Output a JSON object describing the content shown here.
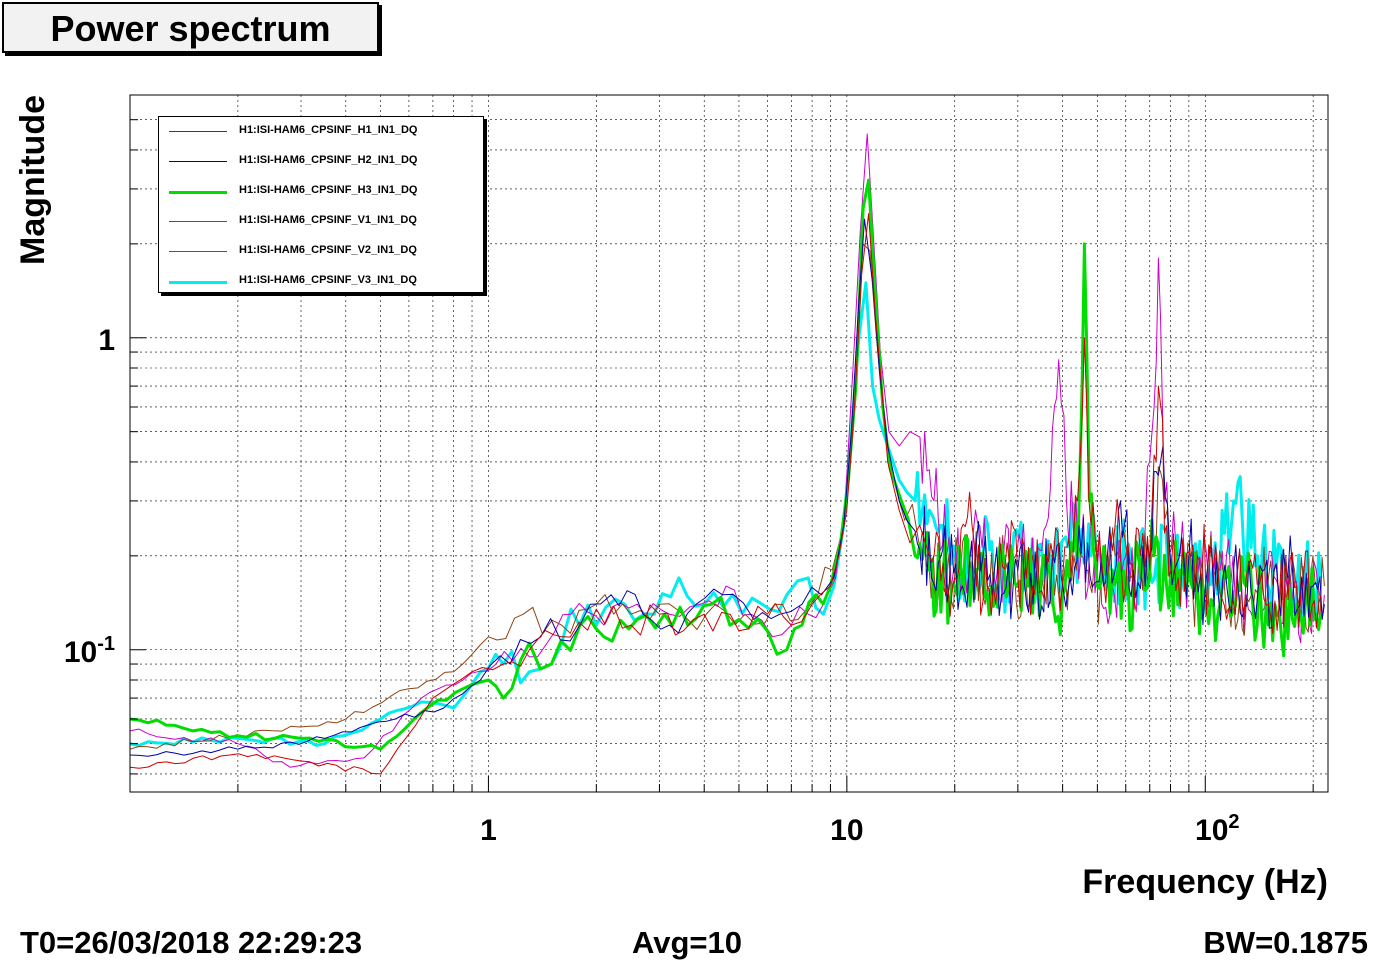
{
  "title": "Power spectrum",
  "footer": {
    "t0": "T0=26/03/2018 22:29:23",
    "avg": "Avg=10",
    "bw": "BW=0.1875"
  },
  "chart_data": {
    "type": "line",
    "xlabel": "Frequency (Hz)",
    "ylabel": "Magnitude",
    "xscale": "log",
    "yscale": "log",
    "xlim": [
      0.1,
      220
    ],
    "ylim": [
      0.035,
      6
    ],
    "x_tick_labels": [
      "1",
      "10",
      "10^2"
    ],
    "y_tick_labels": [
      "1",
      "10^-1"
    ],
    "grid": true,
    "legend_position": "top-left",
    "series": [
      {
        "name": "H1:ISI-HAM6_CPSINF_H1_IN1_DQ",
        "color": "#cc0000",
        "width": 1,
        "points": [
          [
            0.1,
            0.042
          ],
          [
            0.19,
            0.046
          ],
          [
            0.3,
            0.044
          ],
          [
            0.5,
            0.04
          ],
          [
            0.7,
            0.07
          ],
          [
            0.9,
            0.085
          ],
          [
            1.1,
            0.09
          ],
          [
            1.3,
            0.1
          ],
          [
            1.6,
            0.11
          ],
          [
            2,
            0.135
          ],
          [
            2.5,
            0.12
          ],
          [
            3,
            0.13
          ],
          [
            3.5,
            0.115
          ],
          [
            4,
            0.13
          ],
          [
            5,
            0.115
          ],
          [
            6,
            0.13
          ],
          [
            7,
            0.12
          ],
          [
            8,
            0.14
          ],
          [
            9,
            0.16
          ],
          [
            9.5,
            0.2
          ],
          [
            10,
            0.28
          ],
          [
            10.5,
            0.6
          ],
          [
            11,
            1.6
          ],
          [
            11.5,
            2.5
          ],
          [
            12,
            1.2
          ],
          [
            12.5,
            0.7
          ],
          [
            13,
            0.4
          ],
          [
            14,
            0.28
          ],
          [
            15,
            0.22
          ],
          [
            17,
            0.2
          ],
          [
            20,
            0.17
          ],
          [
            22,
            0.32
          ],
          [
            23,
            0.16
          ],
          [
            26,
            0.14
          ],
          [
            28,
            0.22
          ],
          [
            30,
            0.17
          ],
          [
            33,
            0.16
          ],
          [
            36,
            0.2
          ],
          [
            40,
            0.17
          ],
          [
            44,
            0.3
          ],
          [
            46,
            1.0
          ],
          [
            48,
            0.25
          ],
          [
            52,
            0.17
          ],
          [
            56,
            0.25
          ],
          [
            60,
            0.16
          ],
          [
            66,
            0.2
          ],
          [
            70,
            0.18
          ],
          [
            74,
            0.7
          ],
          [
            78,
            0.25
          ],
          [
            84,
            0.17
          ],
          [
            95,
            0.2
          ],
          [
            110,
            0.15
          ],
          [
            130,
            0.17
          ],
          [
            150,
            0.14
          ],
          [
            180,
            0.16
          ],
          [
            210,
            0.15
          ]
        ]
      },
      {
        "name": "H1:ISI-HAM6_CPSINF_H2_IN1_DQ",
        "color": "#0000aa",
        "width": 1,
        "points": [
          [
            0.1,
            0.046
          ],
          [
            0.2,
            0.048
          ],
          [
            0.35,
            0.052
          ],
          [
            0.55,
            0.06
          ],
          [
            0.75,
            0.065
          ],
          [
            0.95,
            0.08
          ],
          [
            1.15,
            0.09
          ],
          [
            1.4,
            0.11
          ],
          [
            1.8,
            0.12
          ],
          [
            2.2,
            0.15
          ],
          [
            2.7,
            0.13
          ],
          [
            3.2,
            0.12
          ],
          [
            3.8,
            0.14
          ],
          [
            4.5,
            0.15
          ],
          [
            5.5,
            0.125
          ],
          [
            6.5,
            0.13
          ],
          [
            7.5,
            0.14
          ],
          [
            8.5,
            0.15
          ],
          [
            9.2,
            0.17
          ],
          [
            9.8,
            0.25
          ],
          [
            10.3,
            0.5
          ],
          [
            10.8,
            1.3
          ],
          [
            11.2,
            2.4
          ],
          [
            11.8,
            1.5
          ],
          [
            12.3,
            0.8
          ],
          [
            13,
            0.45
          ],
          [
            14,
            0.3
          ],
          [
            15.5,
            0.24
          ],
          [
            18,
            0.19
          ],
          [
            21,
            0.16
          ],
          [
            24,
            0.2
          ],
          [
            27,
            0.15
          ],
          [
            30,
            0.18
          ],
          [
            34,
            0.16
          ],
          [
            38,
            0.19
          ],
          [
            42,
            0.17
          ],
          [
            47,
            0.22
          ],
          [
            52,
            0.16
          ],
          [
            58,
            0.3
          ],
          [
            63,
            0.18
          ],
          [
            68,
            0.16
          ],
          [
            75,
            0.4
          ],
          [
            82,
            0.18
          ],
          [
            90,
            0.2
          ],
          [
            100,
            0.16
          ],
          [
            120,
            0.18
          ],
          [
            140,
            0.15
          ],
          [
            170,
            0.17
          ],
          [
            200,
            0.16
          ],
          [
            215,
            0.14
          ]
        ]
      },
      {
        "name": "H1:ISI-HAM6_CPSINF_H3_IN1_DQ",
        "color": "#00dd00",
        "width": 3,
        "points": [
          [
            0.1,
            0.06
          ],
          [
            0.2,
            0.053
          ],
          [
            0.3,
            0.052
          ],
          [
            0.5,
            0.048
          ],
          [
            0.65,
            0.063
          ],
          [
            0.85,
            0.075
          ],
          [
            1.0,
            0.08
          ],
          [
            1.1,
            0.07
          ],
          [
            1.3,
            0.105
          ],
          [
            1.5,
            0.09
          ],
          [
            1.8,
            0.12
          ],
          [
            2.1,
            0.11
          ],
          [
            2.6,
            0.125
          ],
          [
            3.1,
            0.13
          ],
          [
            3.6,
            0.12
          ],
          [
            4.2,
            0.14
          ],
          [
            5,
            0.125
          ],
          [
            6,
            0.115
          ],
          [
            6.8,
            0.1
          ],
          [
            7.5,
            0.12
          ],
          [
            8.2,
            0.15
          ],
          [
            9,
            0.16
          ],
          [
            9.6,
            0.22
          ],
          [
            10.1,
            0.35
          ],
          [
            10.6,
            0.7
          ],
          [
            11.1,
            2.6
          ],
          [
            11.5,
            3.2
          ],
          [
            12,
            1.4
          ],
          [
            12.6,
            0.6
          ],
          [
            13.2,
            0.38
          ],
          [
            14.2,
            0.3
          ],
          [
            15.5,
            0.2
          ],
          [
            17,
            0.18
          ],
          [
            20,
            0.16
          ],
          [
            23,
            0.18
          ],
          [
            26,
            0.15
          ],
          [
            29,
            0.2
          ],
          [
            32,
            0.16
          ],
          [
            36,
            0.18
          ],
          [
            40,
            0.15
          ],
          [
            44,
            0.2
          ],
          [
            46,
            2.0
          ],
          [
            47.5,
            0.3
          ],
          [
            50,
            0.16
          ],
          [
            55,
            0.18
          ],
          [
            60,
            0.15
          ],
          [
            66,
            0.17
          ],
          [
            72,
            0.2
          ],
          [
            78,
            0.16
          ],
          [
            85,
            0.18
          ],
          [
            95,
            0.15
          ],
          [
            110,
            0.14
          ],
          [
            130,
            0.16
          ],
          [
            150,
            0.12
          ],
          [
            180,
            0.14
          ],
          [
            210,
            0.13
          ]
        ]
      },
      {
        "name": "H1:ISI-HAM6_CPSINF_V1_IN1_DQ",
        "color": "#8b4513",
        "width": 1,
        "points": [
          [
            0.1,
            0.048
          ],
          [
            0.25,
            0.055
          ],
          [
            0.4,
            0.06
          ],
          [
            0.6,
            0.075
          ],
          [
            0.8,
            0.085
          ],
          [
            1.0,
            0.11
          ],
          [
            1.25,
            0.13
          ],
          [
            1.6,
            0.12
          ],
          [
            2,
            0.14
          ],
          [
            2.5,
            0.13
          ],
          [
            3,
            0.14
          ],
          [
            3.6,
            0.125
          ],
          [
            4.3,
            0.14
          ],
          [
            5.2,
            0.13
          ],
          [
            6.3,
            0.14
          ],
          [
            7.3,
            0.125
          ],
          [
            8.3,
            0.15
          ],
          [
            9.1,
            0.18
          ],
          [
            9.7,
            0.24
          ],
          [
            10.2,
            0.4
          ],
          [
            10.7,
            0.9
          ],
          [
            11.1,
            2.0
          ],
          [
            11.6,
            1.9
          ],
          [
            12.1,
            1.0
          ],
          [
            12.7,
            0.55
          ],
          [
            13.5,
            0.35
          ],
          [
            14.5,
            0.26
          ],
          [
            16,
            0.21
          ],
          [
            19,
            0.17
          ],
          [
            22,
            0.2
          ],
          [
            25,
            0.16
          ],
          [
            28,
            0.19
          ],
          [
            31,
            0.15
          ],
          [
            35,
            0.17
          ],
          [
            39,
            0.15
          ],
          [
            43,
            0.2
          ],
          [
            47,
            0.18
          ],
          [
            51,
            0.16
          ],
          [
            56,
            0.2
          ],
          [
            62,
            0.17
          ],
          [
            70,
            0.19
          ],
          [
            76,
            0.35
          ],
          [
            82,
            0.17
          ],
          [
            92,
            0.16
          ],
          [
            105,
            0.18
          ],
          [
            125,
            0.15
          ],
          [
            150,
            0.17
          ],
          [
            180,
            0.15
          ],
          [
            215,
            0.16
          ]
        ]
      },
      {
        "name": "H1:ISI-HAM6_CPSINF_V2_IN1_DQ",
        "color": "#cc00cc",
        "width": 1,
        "points": [
          [
            0.1,
            0.055
          ],
          [
            0.2,
            0.05
          ],
          [
            0.28,
            0.042
          ],
          [
            0.45,
            0.045
          ],
          [
            0.65,
            0.07
          ],
          [
            0.85,
            0.08
          ],
          [
            1.05,
            0.09
          ],
          [
            1.3,
            0.095
          ],
          [
            1.7,
            0.13
          ],
          [
            2.1,
            0.12
          ],
          [
            2.6,
            0.14
          ],
          [
            3.2,
            0.13
          ],
          [
            3.9,
            0.14
          ],
          [
            4.6,
            0.16
          ],
          [
            5.4,
            0.13
          ],
          [
            6.2,
            0.11
          ],
          [
            7,
            0.12
          ],
          [
            7.8,
            0.13
          ],
          [
            8.6,
            0.14
          ],
          [
            9.3,
            0.17
          ],
          [
            9.9,
            0.3
          ],
          [
            10.4,
            0.8
          ],
          [
            10.9,
            2.2
          ],
          [
            11.4,
            4.5
          ],
          [
            11.9,
            2.0
          ],
          [
            12.4,
            0.9
          ],
          [
            13.1,
            0.5
          ],
          [
            14,
            0.45
          ],
          [
            15,
            0.5
          ],
          [
            16,
            0.48
          ],
          [
            17.5,
            0.3
          ],
          [
            19,
            0.2
          ],
          [
            21,
            0.17
          ],
          [
            23.5,
            0.25
          ],
          [
            26,
            0.16
          ],
          [
            29,
            0.2
          ],
          [
            32,
            0.18
          ],
          [
            36,
            0.25
          ],
          [
            39,
            0.85
          ],
          [
            41,
            0.3
          ],
          [
            45,
            0.2
          ],
          [
            50,
            0.18
          ],
          [
            55,
            0.16
          ],
          [
            60,
            0.2
          ],
          [
            66,
            0.17
          ],
          [
            72,
            0.6
          ],
          [
            74,
            1.8
          ],
          [
            77,
            0.3
          ],
          [
            84,
            0.2
          ],
          [
            95,
            0.17
          ],
          [
            110,
            0.18
          ],
          [
            130,
            0.15
          ],
          [
            160,
            0.16
          ],
          [
            190,
            0.14
          ],
          [
            215,
            0.15
          ]
        ]
      },
      {
        "name": "H1:ISI-HAM6_CPSINF_V3_IN1_DQ",
        "color": "#00eeee",
        "width": 3,
        "points": [
          [
            0.1,
            0.05
          ],
          [
            0.2,
            0.052
          ],
          [
            0.35,
            0.05
          ],
          [
            0.5,
            0.06
          ],
          [
            0.65,
            0.068
          ],
          [
            0.8,
            0.065
          ],
          [
            0.95,
            0.085
          ],
          [
            1.1,
            0.09
          ],
          [
            1.3,
            0.085
          ],
          [
            1.5,
            0.09
          ],
          [
            1.7,
            0.135
          ],
          [
            2,
            0.12
          ],
          [
            2.4,
            0.14
          ],
          [
            2.9,
            0.13
          ],
          [
            3.4,
            0.17
          ],
          [
            4,
            0.14
          ],
          [
            4.8,
            0.15
          ],
          [
            5.8,
            0.14
          ],
          [
            6.8,
            0.15
          ],
          [
            7.8,
            0.17
          ],
          [
            8.6,
            0.13
          ],
          [
            9.2,
            0.16
          ],
          [
            9.8,
            0.25
          ],
          [
            10.3,
            0.5
          ],
          [
            10.8,
            1.0
          ],
          [
            11.3,
            1.5
          ],
          [
            11.8,
            0.7
          ],
          [
            12.3,
            0.55
          ],
          [
            13,
            0.45
          ],
          [
            14,
            0.35
          ],
          [
            15.5,
            0.3
          ],
          [
            17,
            0.28
          ],
          [
            18.5,
            0.25
          ],
          [
            21,
            0.18
          ],
          [
            24,
            0.2
          ],
          [
            28,
            0.17
          ],
          [
            32,
            0.2
          ],
          [
            37,
            0.18
          ],
          [
            42,
            0.22
          ],
          [
            48,
            0.2
          ],
          [
            55,
            0.18
          ],
          [
            62,
            0.2
          ],
          [
            70,
            0.18
          ],
          [
            80,
            0.2
          ],
          [
            90,
            0.17
          ],
          [
            105,
            0.18
          ],
          [
            120,
            0.3
          ],
          [
            140,
            0.2
          ],
          [
            170,
            0.16
          ],
          [
            210,
            0.17
          ]
        ]
      }
    ]
  }
}
